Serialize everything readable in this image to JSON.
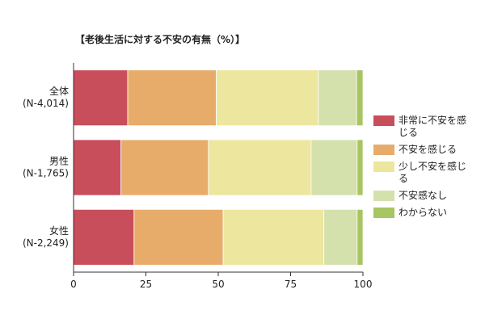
{
  "chart_data": {
    "type": "bar",
    "orientation": "horizontal",
    "stacked": true,
    "title": "【老後生活に対する不安の有無（%）】",
    "categories": [
      [
        "全体",
        "(N-4,014)"
      ],
      [
        "男性",
        "(N-1,765)"
      ],
      [
        "女性",
        "(N-2,249)"
      ]
    ],
    "series": [
      {
        "name": "非常に不安を感じる",
        "color": "#c84e5c",
        "values": [
          18.7,
          16.4,
          20.9
        ]
      },
      {
        "name": "不安を感じる",
        "color": "#e8ac6a",
        "values": [
          30.6,
          30.2,
          30.8
        ]
      },
      {
        "name": "少し不安を感じる",
        "color": "#ede69e",
        "values": [
          35.3,
          35.5,
          34.8
        ]
      },
      {
        "name": "不安感なし",
        "color": "#d4e1ad",
        "values": [
          13.2,
          15.9,
          11.5
        ]
      },
      {
        "name": "わからない",
        "color": "#a7c562",
        "values": [
          2.2,
          2.0,
          2.0
        ]
      }
    ],
    "xlim": [
      0,
      100
    ],
    "xticks": [
      0,
      25,
      50,
      75,
      100
    ],
    "grid": false,
    "legend_position": "right"
  }
}
